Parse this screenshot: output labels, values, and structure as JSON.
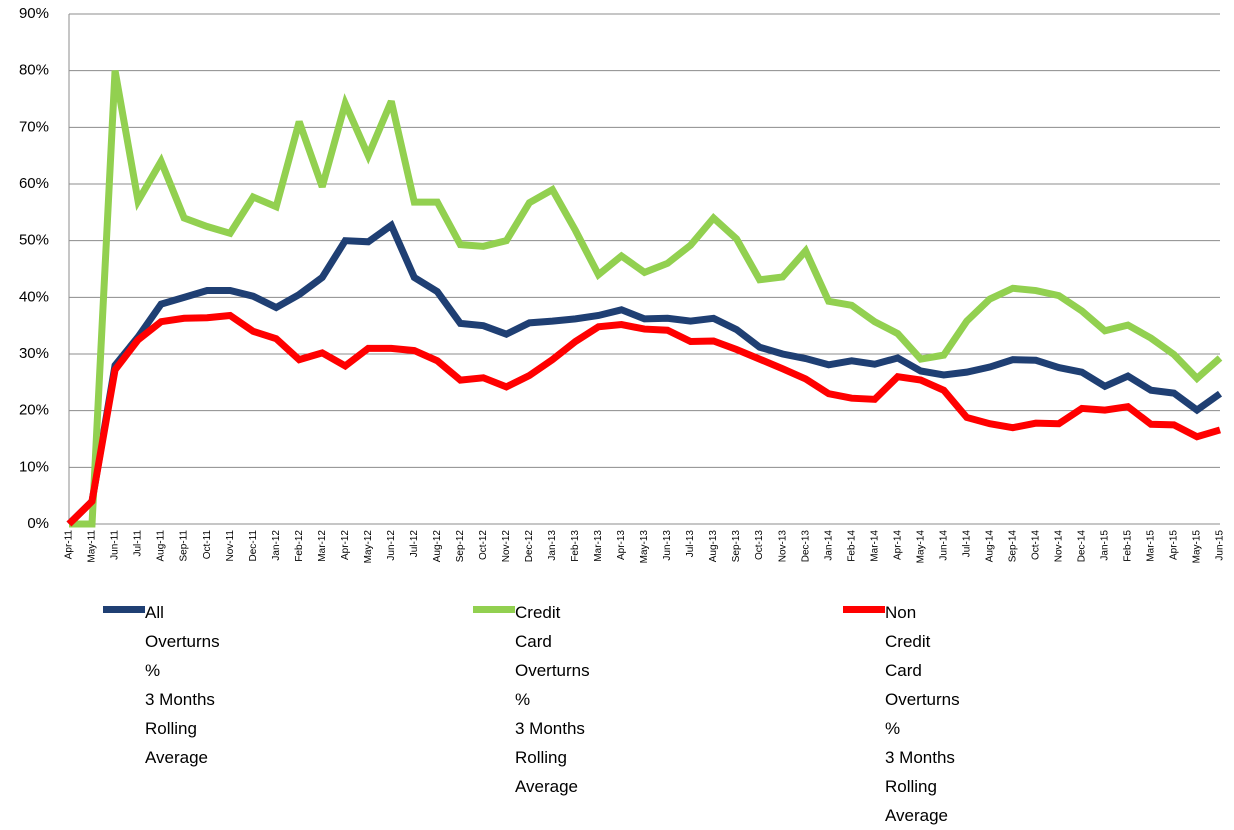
{
  "chart_data": {
    "type": "line",
    "categories": [
      "Apr-11",
      "May-11",
      "Jun-11",
      "Jul-11",
      "Aug-11",
      "Sep-11",
      "Oct-11",
      "Nov-11",
      "Dec-11",
      "Jan-12",
      "Feb-12",
      "Mar-12",
      "Apr-12",
      "May-12",
      "Jun-12",
      "Jul-12",
      "Aug-12",
      "Sep-12",
      "Oct-12",
      "Nov-12",
      "Dec-12",
      "Jan-13",
      "Feb-13",
      "Mar-13",
      "Apr-13",
      "May-13",
      "Jun-13",
      "Jul-13",
      "Aug-13",
      "Sep-13",
      "Oct-13",
      "Nov-13",
      "Dec-13",
      "Jan-14",
      "Feb-14",
      "Mar-14",
      "Apr-14",
      "May-14",
      "Jun-14",
      "Jul-14",
      "Aug-14",
      "Sep-14",
      "Oct-14",
      "Nov-14",
      "Dec-14",
      "Jan-15",
      "Feb-15",
      "Mar-15",
      "Apr-15",
      "May-15",
      "Jun-15"
    ],
    "series": [
      {
        "name": "All Overturns %\n3 Months Rolling Average",
        "color": "#1f3f73",
        "values": [
          0,
          4,
          28,
          33,
          38.8,
          40,
          41.2,
          41.2,
          40.2,
          38.2,
          40.5,
          43.5,
          50,
          49.8,
          52.7,
          43.5,
          41,
          35.4,
          35,
          33.5,
          35.5,
          35.8,
          36.2,
          36.8,
          37.8,
          36.2,
          36.3,
          35.8,
          36.3,
          34.3,
          31.2,
          30,
          29.2,
          28.1,
          28.8,
          28.2,
          29.3,
          27,
          26.3,
          26.8,
          27.7,
          29,
          28.9,
          27.6,
          26.8,
          24.3,
          26.1,
          23.6,
          23.1,
          20.1,
          23
        ]
      },
      {
        "name": "Credit Card Overturns %\n3 Months Rolling Average",
        "color": "#92d050",
        "values": [
          0,
          0,
          80,
          57,
          64,
          54,
          52.5,
          51.3,
          57.7,
          56,
          71,
          59.5,
          74.2,
          65,
          74.6,
          56.8,
          56.8,
          49.3,
          49,
          50,
          56.7,
          59,
          51.8,
          44,
          47.3,
          44.4,
          46,
          49.2,
          54,
          50.3,
          43.1,
          43.6,
          48.2,
          39.3,
          38.6,
          35.7,
          33.6,
          29.1,
          29.8,
          35.8,
          39.7,
          41.6,
          41.2,
          40.3,
          37.6,
          34.1,
          35.1,
          32.8,
          29.9,
          25.7,
          29.3
        ]
      },
      {
        "name": "Non Credit Card Overturns %\n3 Months Rolling Average",
        "color": "#ff0000",
        "values": [
          0,
          4,
          27.2,
          32.5,
          35.7,
          36.3,
          36.4,
          36.8,
          34,
          32.7,
          29,
          30.2,
          27.9,
          31,
          31,
          30.6,
          28.8,
          25.4,
          25.8,
          24.2,
          26.2,
          29,
          32.2,
          34.8,
          35.2,
          34.4,
          34.2,
          32.2,
          32.3,
          30.8,
          29.1,
          27.4,
          25.6,
          23,
          22.2,
          22,
          26,
          25.4,
          23.6,
          18.8,
          17.7,
          17,
          17.8,
          17.7,
          20.4,
          20.1,
          20.7,
          17.6,
          17.5,
          15.4,
          16.6
        ]
      }
    ],
    "ylim": [
      0,
      90
    ],
    "yticks": [
      {
        "value": 0,
        "label": "0%"
      },
      {
        "value": 10,
        "label": "10%"
      },
      {
        "value": 20,
        "label": "20%"
      },
      {
        "value": 30,
        "label": "30%"
      },
      {
        "value": 40,
        "label": "40%"
      },
      {
        "value": 50,
        "label": "50%"
      },
      {
        "value": 60,
        "label": "60%"
      },
      {
        "value": 70,
        "label": "70%"
      },
      {
        "value": 80,
        "label": "80%"
      },
      {
        "value": 90,
        "label": "90%"
      }
    ],
    "grid": true,
    "legend": "bottom"
  }
}
